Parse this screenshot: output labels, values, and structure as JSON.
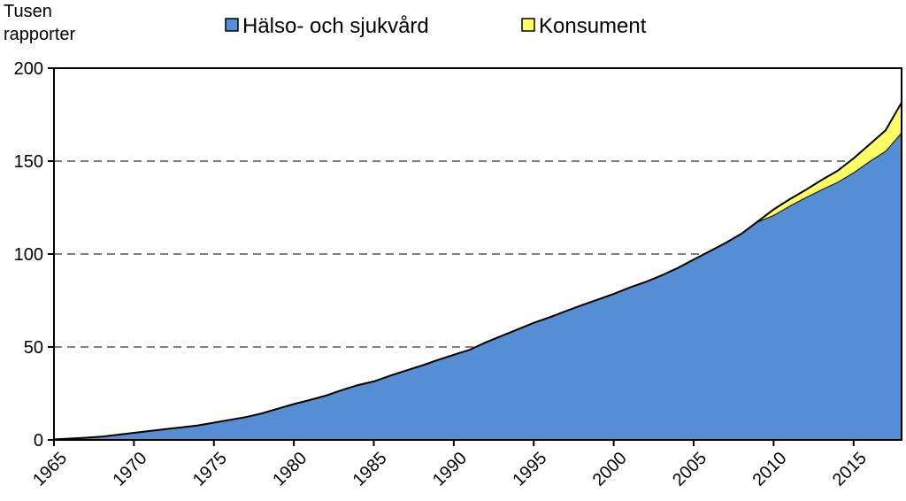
{
  "chart_data": {
    "type": "area",
    "stacked": true,
    "ylabel": [
      "Tusen",
      "rapporter"
    ],
    "xlabel": "",
    "xlim": [
      1965,
      2018
    ],
    "ylim": [
      0,
      200
    ],
    "grid": "horizontal-dashed",
    "legend_position": "top",
    "x_ticks": [
      "1965",
      "1970",
      "1975",
      "1980",
      "1985",
      "1990",
      "1995",
      "2000",
      "2005",
      "2010",
      "2015"
    ],
    "y_ticks": [
      "0",
      "50",
      "100",
      "150",
      "200"
    ],
    "x": [
      1965,
      1966,
      1967,
      1968,
      1969,
      1970,
      1971,
      1972,
      1973,
      1974,
      1975,
      1976,
      1977,
      1978,
      1979,
      1980,
      1981,
      1982,
      1983,
      1984,
      1985,
      1986,
      1987,
      1988,
      1989,
      1990,
      1991,
      1992,
      1993,
      1994,
      1995,
      1996,
      1997,
      1998,
      1999,
      2000,
      2001,
      2002,
      2003,
      2004,
      2005,
      2006,
      2007,
      2008,
      2009,
      2010,
      2011,
      2012,
      2013,
      2014,
      2015,
      2016,
      2017,
      2018
    ],
    "series": [
      {
        "name": "Hälso- och sjukvård",
        "color": "#558ed5",
        "values": [
          0.3,
          0.7,
          1.2,
          1.8,
          2.8,
          3.8,
          4.8,
          5.8,
          6.8,
          7.8,
          9.3,
          10.8,
          12.3,
          14.3,
          16.8,
          19.3,
          21.5,
          23.8,
          26.8,
          29.5,
          31.5,
          34.5,
          37.3,
          40.0,
          43.0,
          45.8,
          48.5,
          52.5,
          56.0,
          59.5,
          63.0,
          66.0,
          69.3,
          72.5,
          75.5,
          78.5,
          82.0,
          85.0,
          88.5,
          92.5,
          97.0,
          101.5,
          106.0,
          111.0,
          117.5,
          121.0,
          126.0,
          130.5,
          134.8,
          138.8,
          144.0,
          150.0,
          155.5,
          165.5
        ]
      },
      {
        "name": "Konsument",
        "color": "#ffff66",
        "values": [
          0,
          0,
          0,
          0,
          0,
          0,
          0,
          0,
          0,
          0,
          0,
          0,
          0,
          0,
          0,
          0,
          0,
          0,
          0,
          0,
          0,
          0,
          0,
          0,
          0,
          0,
          0,
          0,
          0,
          0,
          0,
          0,
          0,
          0,
          0,
          0,
          0,
          0,
          0,
          0,
          0,
          0,
          0,
          0,
          0,
          3.0,
          3.5,
          4.0,
          5.0,
          6.0,
          7.5,
          9.0,
          11.0,
          16.0
        ]
      }
    ]
  }
}
